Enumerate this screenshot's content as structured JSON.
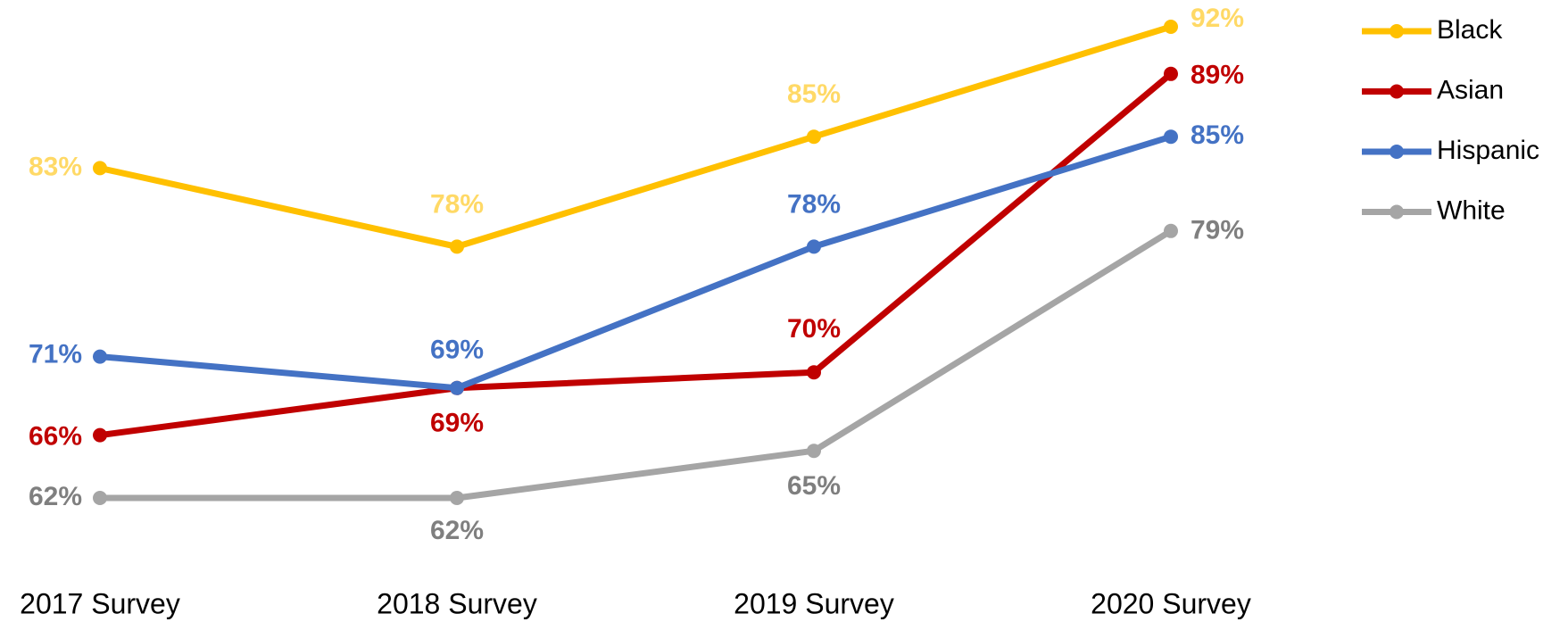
{
  "chart_data": {
    "type": "line",
    "categories": [
      "2017 Survey",
      "2018 Survey",
      "2019 Survey",
      "2020 Survey"
    ],
    "series": [
      {
        "name": "Black",
        "color": "#FFC000",
        "label_color": "#FFD966",
        "values": [
          83,
          78,
          85,
          92
        ],
        "value_labels": [
          "83%",
          "78%",
          "85%",
          "92%"
        ]
      },
      {
        "name": "Asian",
        "color": "#C00000",
        "label_color": "#C00000",
        "values": [
          66,
          69,
          70,
          89
        ],
        "value_labels": [
          "66%",
          "69%",
          "70%",
          "89%"
        ]
      },
      {
        "name": "Hispanic",
        "color": "#4472C4",
        "label_color": "#4472C4",
        "values": [
          71,
          69,
          78,
          85
        ],
        "value_labels": [
          "71%",
          "69%",
          "78%",
          "85%"
        ]
      },
      {
        "name": "White",
        "color": "#A5A5A5",
        "label_color": "#7F7F7F",
        "values": [
          62,
          62,
          65,
          79
        ],
        "value_labels": [
          "62%",
          "62%",
          "65%",
          "79%"
        ]
      }
    ],
    "legend": "top-right"
  }
}
